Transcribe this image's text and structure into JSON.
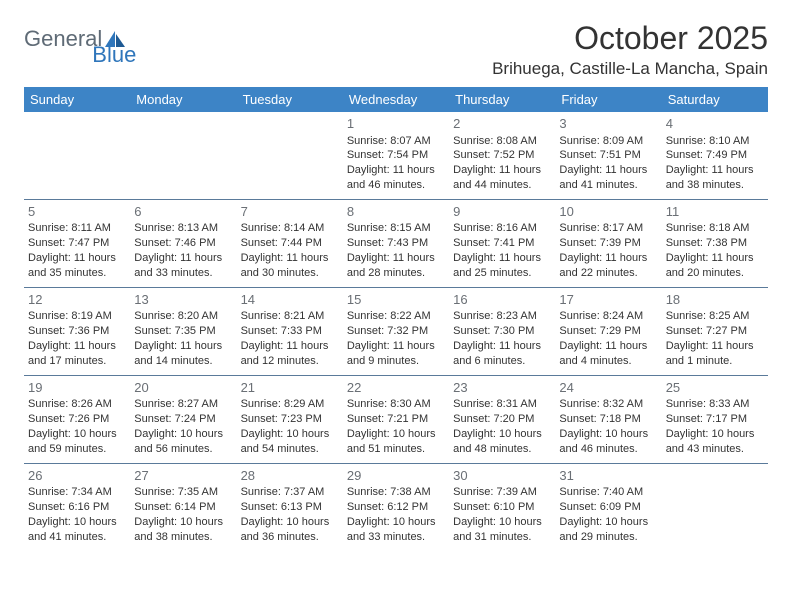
{
  "brand": {
    "part1": "General",
    "part2": "Blue"
  },
  "title": "October 2025",
  "location": "Brihuega, Castille-La Mancha, Spain",
  "colors": {
    "header_bg": "#3d84c6",
    "header_text": "#ffffff",
    "row_border": "#5a7a9a",
    "daynum": "#6a6f75",
    "body_text": "#333333",
    "brand_gray": "#5f6b76",
    "brand_blue": "#2f76bb"
  },
  "day_headers": [
    "Sunday",
    "Monday",
    "Tuesday",
    "Wednesday",
    "Thursday",
    "Friday",
    "Saturday"
  ],
  "weeks": [
    [
      null,
      null,
      null,
      {
        "n": "1",
        "sr": "Sunrise: 8:07 AM",
        "ss": "Sunset: 7:54 PM",
        "d1": "Daylight: 11 hours",
        "d2": "and 46 minutes."
      },
      {
        "n": "2",
        "sr": "Sunrise: 8:08 AM",
        "ss": "Sunset: 7:52 PM",
        "d1": "Daylight: 11 hours",
        "d2": "and 44 minutes."
      },
      {
        "n": "3",
        "sr": "Sunrise: 8:09 AM",
        "ss": "Sunset: 7:51 PM",
        "d1": "Daylight: 11 hours",
        "d2": "and 41 minutes."
      },
      {
        "n": "4",
        "sr": "Sunrise: 8:10 AM",
        "ss": "Sunset: 7:49 PM",
        "d1": "Daylight: 11 hours",
        "d2": "and 38 minutes."
      }
    ],
    [
      {
        "n": "5",
        "sr": "Sunrise: 8:11 AM",
        "ss": "Sunset: 7:47 PM",
        "d1": "Daylight: 11 hours",
        "d2": "and 35 minutes."
      },
      {
        "n": "6",
        "sr": "Sunrise: 8:13 AM",
        "ss": "Sunset: 7:46 PM",
        "d1": "Daylight: 11 hours",
        "d2": "and 33 minutes."
      },
      {
        "n": "7",
        "sr": "Sunrise: 8:14 AM",
        "ss": "Sunset: 7:44 PM",
        "d1": "Daylight: 11 hours",
        "d2": "and 30 minutes."
      },
      {
        "n": "8",
        "sr": "Sunrise: 8:15 AM",
        "ss": "Sunset: 7:43 PM",
        "d1": "Daylight: 11 hours",
        "d2": "and 28 minutes."
      },
      {
        "n": "9",
        "sr": "Sunrise: 8:16 AM",
        "ss": "Sunset: 7:41 PM",
        "d1": "Daylight: 11 hours",
        "d2": "and 25 minutes."
      },
      {
        "n": "10",
        "sr": "Sunrise: 8:17 AM",
        "ss": "Sunset: 7:39 PM",
        "d1": "Daylight: 11 hours",
        "d2": "and 22 minutes."
      },
      {
        "n": "11",
        "sr": "Sunrise: 8:18 AM",
        "ss": "Sunset: 7:38 PM",
        "d1": "Daylight: 11 hours",
        "d2": "and 20 minutes."
      }
    ],
    [
      {
        "n": "12",
        "sr": "Sunrise: 8:19 AM",
        "ss": "Sunset: 7:36 PM",
        "d1": "Daylight: 11 hours",
        "d2": "and 17 minutes."
      },
      {
        "n": "13",
        "sr": "Sunrise: 8:20 AM",
        "ss": "Sunset: 7:35 PM",
        "d1": "Daylight: 11 hours",
        "d2": "and 14 minutes."
      },
      {
        "n": "14",
        "sr": "Sunrise: 8:21 AM",
        "ss": "Sunset: 7:33 PM",
        "d1": "Daylight: 11 hours",
        "d2": "and 12 minutes."
      },
      {
        "n": "15",
        "sr": "Sunrise: 8:22 AM",
        "ss": "Sunset: 7:32 PM",
        "d1": "Daylight: 11 hours",
        "d2": "and 9 minutes."
      },
      {
        "n": "16",
        "sr": "Sunrise: 8:23 AM",
        "ss": "Sunset: 7:30 PM",
        "d1": "Daylight: 11 hours",
        "d2": "and 6 minutes."
      },
      {
        "n": "17",
        "sr": "Sunrise: 8:24 AM",
        "ss": "Sunset: 7:29 PM",
        "d1": "Daylight: 11 hours",
        "d2": "and 4 minutes."
      },
      {
        "n": "18",
        "sr": "Sunrise: 8:25 AM",
        "ss": "Sunset: 7:27 PM",
        "d1": "Daylight: 11 hours",
        "d2": "and 1 minute."
      }
    ],
    [
      {
        "n": "19",
        "sr": "Sunrise: 8:26 AM",
        "ss": "Sunset: 7:26 PM",
        "d1": "Daylight: 10 hours",
        "d2": "and 59 minutes."
      },
      {
        "n": "20",
        "sr": "Sunrise: 8:27 AM",
        "ss": "Sunset: 7:24 PM",
        "d1": "Daylight: 10 hours",
        "d2": "and 56 minutes."
      },
      {
        "n": "21",
        "sr": "Sunrise: 8:29 AM",
        "ss": "Sunset: 7:23 PM",
        "d1": "Daylight: 10 hours",
        "d2": "and 54 minutes."
      },
      {
        "n": "22",
        "sr": "Sunrise: 8:30 AM",
        "ss": "Sunset: 7:21 PM",
        "d1": "Daylight: 10 hours",
        "d2": "and 51 minutes."
      },
      {
        "n": "23",
        "sr": "Sunrise: 8:31 AM",
        "ss": "Sunset: 7:20 PM",
        "d1": "Daylight: 10 hours",
        "d2": "and 48 minutes."
      },
      {
        "n": "24",
        "sr": "Sunrise: 8:32 AM",
        "ss": "Sunset: 7:18 PM",
        "d1": "Daylight: 10 hours",
        "d2": "and 46 minutes."
      },
      {
        "n": "25",
        "sr": "Sunrise: 8:33 AM",
        "ss": "Sunset: 7:17 PM",
        "d1": "Daylight: 10 hours",
        "d2": "and 43 minutes."
      }
    ],
    [
      {
        "n": "26",
        "sr": "Sunrise: 7:34 AM",
        "ss": "Sunset: 6:16 PM",
        "d1": "Daylight: 10 hours",
        "d2": "and 41 minutes."
      },
      {
        "n": "27",
        "sr": "Sunrise: 7:35 AM",
        "ss": "Sunset: 6:14 PM",
        "d1": "Daylight: 10 hours",
        "d2": "and 38 minutes."
      },
      {
        "n": "28",
        "sr": "Sunrise: 7:37 AM",
        "ss": "Sunset: 6:13 PM",
        "d1": "Daylight: 10 hours",
        "d2": "and 36 minutes."
      },
      {
        "n": "29",
        "sr": "Sunrise: 7:38 AM",
        "ss": "Sunset: 6:12 PM",
        "d1": "Daylight: 10 hours",
        "d2": "and 33 minutes."
      },
      {
        "n": "30",
        "sr": "Sunrise: 7:39 AM",
        "ss": "Sunset: 6:10 PM",
        "d1": "Daylight: 10 hours",
        "d2": "and 31 minutes."
      },
      {
        "n": "31",
        "sr": "Sunrise: 7:40 AM",
        "ss": "Sunset: 6:09 PM",
        "d1": "Daylight: 10 hours",
        "d2": "and 29 minutes."
      },
      null
    ]
  ]
}
